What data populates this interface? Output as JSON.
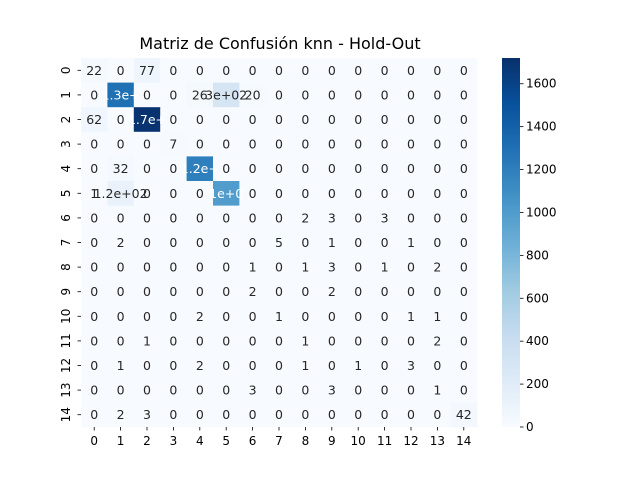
{
  "chart_data": {
    "type": "heatmap",
    "title": "Matriz de Confusión knn - Hold-Out",
    "xlabel": "",
    "ylabel": "",
    "x_ticks": [
      "0",
      "1",
      "2",
      "3",
      "4",
      "5",
      "6",
      "7",
      "8",
      "9",
      "10",
      "11",
      "12",
      "13",
      "14"
    ],
    "y_ticks": [
      "0",
      "1",
      "2",
      "3",
      "4",
      "5",
      "6",
      "7",
      "8",
      "9",
      "10",
      "11",
      "12",
      "13",
      "14"
    ],
    "matrix": [
      [
        22,
        0,
        77,
        0,
        0,
        0,
        0,
        0,
        0,
        0,
        0,
        0,
        0,
        0,
        0
      ],
      [
        0,
        1300,
        0,
        0,
        26,
        300,
        20,
        0,
        0,
        0,
        0,
        0,
        0,
        0,
        0
      ],
      [
        62,
        0,
        1700,
        0,
        0,
        0,
        0,
        0,
        0,
        0,
        0,
        0,
        0,
        0,
        0
      ],
      [
        0,
        0,
        0,
        7,
        0,
        0,
        0,
        0,
        0,
        0,
        0,
        0,
        0,
        0,
        0
      ],
      [
        0,
        32,
        0,
        0,
        1200,
        0,
        0,
        0,
        0,
        0,
        0,
        0,
        0,
        0,
        0
      ],
      [
        1,
        120,
        0,
        0,
        0,
        1000,
        0,
        0,
        0,
        0,
        0,
        0,
        0,
        0,
        0
      ],
      [
        0,
        0,
        0,
        0,
        0,
        0,
        0,
        0,
        2,
        3,
        0,
        3,
        0,
        0,
        0
      ],
      [
        0,
        2,
        0,
        0,
        0,
        0,
        0,
        5,
        0,
        1,
        0,
        0,
        1,
        0,
        0
      ],
      [
        0,
        0,
        0,
        0,
        0,
        0,
        1,
        0,
        1,
        3,
        0,
        1,
        0,
        2,
        0
      ],
      [
        0,
        0,
        0,
        0,
        0,
        0,
        2,
        0,
        0,
        2,
        0,
        0,
        0,
        0,
        0
      ],
      [
        0,
        0,
        0,
        0,
        2,
        0,
        0,
        1,
        0,
        0,
        0,
        0,
        1,
        1,
        0
      ],
      [
        0,
        0,
        1,
        0,
        0,
        0,
        0,
        0,
        1,
        0,
        0,
        0,
        0,
        2,
        0
      ],
      [
        0,
        1,
        0,
        0,
        2,
        0,
        0,
        0,
        1,
        0,
        1,
        0,
        3,
        0,
        0
      ],
      [
        0,
        0,
        0,
        0,
        0,
        0,
        3,
        0,
        0,
        3,
        0,
        0,
        0,
        1,
        0
      ],
      [
        0,
        2,
        3,
        0,
        0,
        0,
        0,
        0,
        0,
        0,
        0,
        0,
        0,
        0,
        42
      ]
    ],
    "labels": [
      [
        "22",
        "0",
        "77",
        "0",
        "0",
        "0",
        "0",
        "0",
        "0",
        "0",
        "0",
        "0",
        "0",
        "0",
        "0"
      ],
      [
        "0",
        "1.3e+",
        "0",
        "0",
        "26",
        "3e+02",
        "20",
        "0",
        "0",
        "0",
        "0",
        "0",
        "0",
        "0",
        "0"
      ],
      [
        "62",
        "0",
        "1.7e+",
        "0",
        "0",
        "0",
        "0",
        "0",
        "0",
        "0",
        "0",
        "0",
        "0",
        "0",
        "0"
      ],
      [
        "0",
        "0",
        "0",
        "7",
        "0",
        "0",
        "0",
        "0",
        "0",
        "0",
        "0",
        "0",
        "0",
        "0",
        "0"
      ],
      [
        "0",
        "32",
        "0",
        "0",
        "1.2e+",
        "0",
        "0",
        "0",
        "0",
        "0",
        "0",
        "0",
        "0",
        "0",
        "0"
      ],
      [
        "1",
        "1.2e+02",
        "0",
        "0",
        "0",
        "1e+0",
        "0",
        "0",
        "0",
        "0",
        "0",
        "0",
        "0",
        "0",
        "0"
      ],
      [
        "0",
        "0",
        "0",
        "0",
        "0",
        "0",
        "0",
        "0",
        "2",
        "3",
        "0",
        "3",
        "0",
        "0",
        "0"
      ],
      [
        "0",
        "2",
        "0",
        "0",
        "0",
        "0",
        "0",
        "5",
        "0",
        "1",
        "0",
        "0",
        "1",
        "0",
        "0"
      ],
      [
        "0",
        "0",
        "0",
        "0",
        "0",
        "0",
        "1",
        "0",
        "1",
        "3",
        "0",
        "1",
        "0",
        "2",
        "0"
      ],
      [
        "0",
        "0",
        "0",
        "0",
        "0",
        "0",
        "2",
        "0",
        "0",
        "2",
        "0",
        "0",
        "0",
        "0",
        "0"
      ],
      [
        "0",
        "0",
        "0",
        "0",
        "2",
        "0",
        "0",
        "1",
        "0",
        "0",
        "0",
        "0",
        "1",
        "1",
        "0"
      ],
      [
        "0",
        "0",
        "1",
        "0",
        "0",
        "0",
        "0",
        "0",
        "1",
        "0",
        "0",
        "0",
        "0",
        "2",
        "0"
      ],
      [
        "0",
        "1",
        "0",
        "0",
        "2",
        "0",
        "0",
        "0",
        "1",
        "0",
        "1",
        "0",
        "3",
        "0",
        "0"
      ],
      [
        "0",
        "0",
        "0",
        "0",
        "0",
        "0",
        "3",
        "0",
        "0",
        "3",
        "0",
        "0",
        "0",
        "1",
        "0"
      ],
      [
        "0",
        "2",
        "3",
        "0",
        "0",
        "0",
        "0",
        "0",
        "0",
        "0",
        "0",
        "0",
        "0",
        "0",
        "42"
      ]
    ],
    "colorbar": {
      "colormap": "Blues",
      "vmin": 0,
      "vmax": 1720,
      "ticks": [
        0,
        200,
        400,
        600,
        800,
        1000,
        1200,
        1400,
        1600
      ]
    },
    "grid": false,
    "legend": "none"
  }
}
